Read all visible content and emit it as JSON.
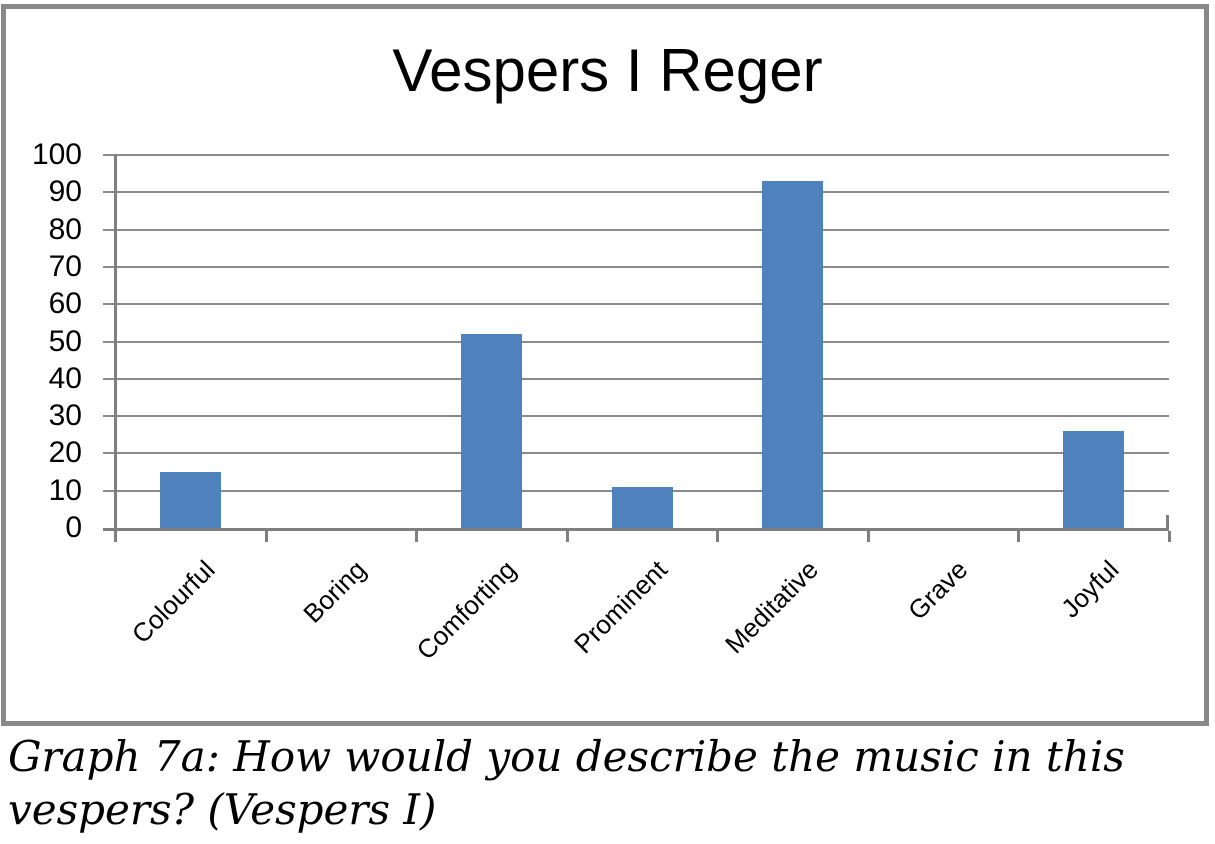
{
  "chart_data": {
    "type": "bar",
    "title": "Vespers I Reger",
    "categories": [
      "Colourful",
      "Boring",
      "Comforting",
      "Prominent",
      "Meditative",
      "Grave",
      "Joyful"
    ],
    "values": [
      15,
      0,
      52,
      11,
      93,
      0,
      26
    ],
    "xlabel": "",
    "ylabel": "",
    "ylim": [
      0,
      100
    ],
    "y_tick_step": 10,
    "y_tick_labels": [
      "0",
      "10",
      "20",
      "30",
      "40",
      "50",
      "60",
      "70",
      "80",
      "90",
      "100"
    ],
    "grid": true,
    "legend": false,
    "x_labels_rotation_degrees": 45,
    "colors": {
      "bar": "#4F81BD",
      "gridline": "#8A8A8A",
      "axis": "#7F7F7F",
      "frame_border": "#898989",
      "text": "#000000",
      "background": "#FFFFFF"
    }
  },
  "caption": {
    "line1": "Graph 7a: How would you describe the music in this",
    "line2": "vespers? (Vespers I)",
    "full_text": "Graph 7a: How would you describe the music in this vespers? (Vespers I)"
  }
}
